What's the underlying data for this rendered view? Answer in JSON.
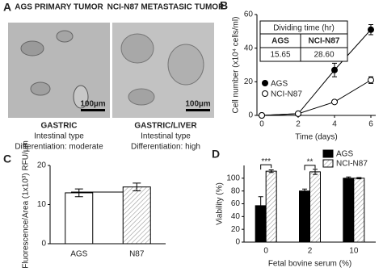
{
  "panel_a": {
    "letter": "A",
    "left": {
      "title": "AGS PRIMARY TUMOR",
      "scale": "100µm",
      "site": "GASTRIC",
      "type": "Intestinal type",
      "differentiation": "Differentiation: moderate"
    },
    "right": {
      "title": "NCI-N87 METASTASIC TUMOR",
      "scale": "100µm",
      "site": "GASTRIC/LIVER",
      "type": "Intestinal type",
      "differentiation": "Differentiation: high"
    }
  },
  "chart_data": [
    {
      "type": "line",
      "letter": "B",
      "x_label": "Time (days)",
      "y_label": "Cell number (x10⁴ cells/ml)",
      "x": [
        0,
        2,
        4,
        6
      ],
      "xlim": [
        0,
        6
      ],
      "xticks": [
        0,
        2,
        4,
        6
      ],
      "ylim": [
        0,
        60
      ],
      "yticks": [
        0,
        20,
        40,
        60
      ],
      "series": [
        {
          "name": "AGS",
          "color": "#000000",
          "values": [
            0,
            1,
            27,
            51
          ],
          "errors": [
            0.5,
            0.5,
            4,
            3
          ]
        },
        {
          "name": "NCI-N87",
          "color": "#ffffff",
          "values": [
            0,
            1,
            8,
            21
          ],
          "errors": [
            0.5,
            0.5,
            1,
            2
          ]
        }
      ],
      "table": {
        "title": "Dividing time (hr)",
        "header": [
          "AGS",
          "NCI-N87"
        ],
        "row": [
          "15.65",
          "28.60"
        ]
      }
    },
    {
      "type": "bar",
      "letter": "C",
      "y_label": "Fluorescence/Area (1x10³) RFU/µm",
      "categories": [
        "AGS",
        "N87"
      ],
      "values": [
        13,
        14.5
      ],
      "errors": [
        1,
        1
      ],
      "colors": [
        "#ffffff",
        "hatch"
      ],
      "ylim": [
        0,
        20
      ],
      "yticks": [
        0,
        10,
        20
      ]
    },
    {
      "type": "grouped_bar",
      "letter": "D",
      "x_label": "Fetal bovine serum (%)",
      "y_label": "Viability (%)",
      "categories": [
        "0",
        "2",
        "10"
      ],
      "ylim": [
        0,
        120
      ],
      "yticks": [
        0,
        20,
        40,
        60,
        80,
        100
      ],
      "series": [
        {
          "name": "AGS",
          "color": "#000000",
          "values": [
            57,
            80,
            100
          ],
          "errors": [
            14,
            3,
            2
          ]
        },
        {
          "name": "NCI-N87",
          "color": "hatch",
          "values": [
            111,
            110,
            100
          ],
          "errors": [
            2,
            4,
            1
          ]
        }
      ],
      "annotations": [
        "***",
        "**"
      ]
    }
  ]
}
